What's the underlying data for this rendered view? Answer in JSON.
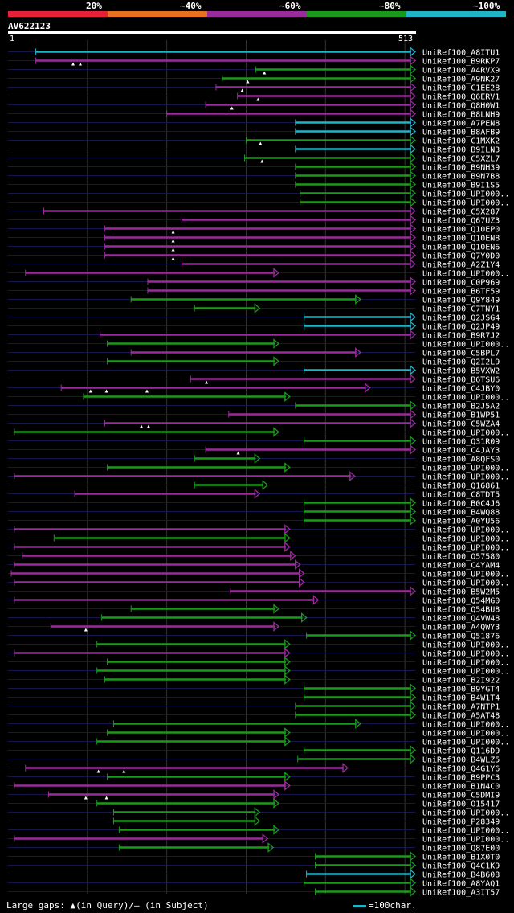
{
  "legend": {
    "segments": [
      {
        "label": "20%",
        "color": "#e8203a"
      },
      {
        "label": "~40%",
        "color": "#e8721f"
      },
      {
        "label": "~60%",
        "color": "#9a2b9c"
      },
      {
        "label": "~80%",
        "color": "#1a9a1a"
      },
      {
        "label": "~100%",
        "color": "#1fb5c6"
      }
    ]
  },
  "query": {
    "name": "AV622123",
    "start": "1",
    "end": "513"
  },
  "colors": {
    "cyan": "#1fb5c6",
    "green": "#1a9a1a",
    "purple": "#9a2b9c",
    "guide": "#16164a",
    "grid": "#333"
  },
  "footer": {
    "gaps": "Large gaps: ▲(in Query)/– (in Subject)",
    "scale": "=100char."
  },
  "chart_data": {
    "type": "alignment",
    "query_length": 513,
    "hits": [
      {
        "label": "UniRef100_A8ITU1",
        "s": 35,
        "e": 513,
        "c": "c"
      },
      {
        "label": "UniRef100_B9RKP7",
        "s": 35,
        "e": 513,
        "c": "p",
        "q": [
          82,
          91
        ]
      },
      {
        "label": "UniRef100_A4RVX9",
        "s": 312,
        "e": 513,
        "c": "g",
        "q": [
          323
        ]
      },
      {
        "label": "UniRef100_A9NK27",
        "s": 270,
        "e": 513,
        "c": "g",
        "q": [
          302
        ]
      },
      {
        "label": "UniRef100_C1EE28",
        "s": 262,
        "e": 513,
        "c": "p",
        "q": [
          295
        ]
      },
      {
        "label": "UniRef100_Q6ERV1",
        "s": 289,
        "e": 513,
        "c": "p",
        "q": [
          315
        ]
      },
      {
        "label": "UniRef100_Q8H0W1",
        "s": 249,
        "e": 513,
        "c": "p",
        "q": [
          282
        ]
      },
      {
        "label": "UniRef100_B8LNH9",
        "s": 200,
        "e": 513,
        "c": "p"
      },
      {
        "label": "UniRef100_A7PEN8",
        "s": 362,
        "e": 513,
        "c": "c"
      },
      {
        "label": "UniRef100_B8AFB9",
        "s": 362,
        "e": 513,
        "c": "c"
      },
      {
        "label": "UniRef100_C1MXK2",
        "s": 300,
        "e": 513,
        "c": "g",
        "q": [
          318
        ]
      },
      {
        "label": "UniRef100_B9ILN3",
        "s": 362,
        "e": 513,
        "c": "c"
      },
      {
        "label": "UniRef100_C5XZL7",
        "s": 298,
        "e": 513,
        "c": "g",
        "q": [
          320
        ]
      },
      {
        "label": "UniRef100_B9NH39",
        "s": 362,
        "e": 513,
        "c": "g"
      },
      {
        "label": "UniRef100_B9N7B8",
        "s": 362,
        "e": 513,
        "c": "g"
      },
      {
        "label": "UniRef100_B9I1S5",
        "s": 362,
        "e": 513,
        "c": "g"
      },
      {
        "label": "UniRef100_UPI000..",
        "s": 368,
        "e": 513,
        "c": "g"
      },
      {
        "label": "UniRef100_UPI000..",
        "s": 368,
        "e": 513,
        "c": "g"
      },
      {
        "label": "UniRef100_C5X287",
        "s": 45,
        "e": 513,
        "c": "p"
      },
      {
        "label": "UniRef100_Q67UZ3",
        "s": 219,
        "e": 513,
        "c": "p"
      },
      {
        "label": "UniRef100_Q10EP0",
        "s": 122,
        "e": 513,
        "c": "p",
        "q": [
          208
        ]
      },
      {
        "label": "UniRef100_Q10EN8",
        "s": 122,
        "e": 513,
        "c": "p",
        "q": [
          208
        ]
      },
      {
        "label": "UniRef100_Q10EN6",
        "s": 122,
        "e": 513,
        "c": "p",
        "q": [
          208
        ]
      },
      {
        "label": "UniRef100_Q7Y0D0",
        "s": 122,
        "e": 513,
        "c": "p",
        "q": [
          208
        ]
      },
      {
        "label": "UniRef100_A2Z1Y4",
        "s": 219,
        "e": 513,
        "c": "p"
      },
      {
        "label": "UniRef100_UPI000..",
        "s": 22,
        "e": 341,
        "c": "p"
      },
      {
        "label": "UniRef100_C0P969",
        "s": 176,
        "e": 513,
        "c": "p"
      },
      {
        "label": "UniRef100_B6TF59",
        "s": 176,
        "e": 513,
        "c": "p"
      },
      {
        "label": "UniRef100_Q9Y849",
        "s": 155,
        "e": 444,
        "c": "g"
      },
      {
        "label": "UniRef100_C7TNY1",
        "s": 235,
        "e": 317,
        "c": "g"
      },
      {
        "label": "UniRef100_Q2JSG4",
        "s": 373,
        "e": 513,
        "c": "c"
      },
      {
        "label": "UniRef100_Q2JP49",
        "s": 373,
        "e": 513,
        "c": "c"
      },
      {
        "label": "UniRef100_B9R7J2",
        "s": 116,
        "e": 513,
        "c": "p"
      },
      {
        "label": "UniRef100_UPI000..",
        "s": 125,
        "e": 341,
        "c": "g"
      },
      {
        "label": "UniRef100_C5BPL7",
        "s": 155,
        "e": 444,
        "c": "p"
      },
      {
        "label": "UniRef100_Q2I2L9",
        "s": 125,
        "e": 341,
        "c": "g"
      },
      {
        "label": "UniRef100_B5VXW2",
        "s": 373,
        "e": 513,
        "c": "c"
      },
      {
        "label": "UniRef100_B6TSU6",
        "s": 230,
        "e": 513,
        "c": "p",
        "q": [
          250
        ]
      },
      {
        "label": "UniRef100_C4JBY0",
        "s": 67,
        "e": 456,
        "c": "p",
        "q": [
          104,
          124,
          175
        ]
      },
      {
        "label": "UniRef100_UPI000..",
        "s": 95,
        "e": 355,
        "c": "g"
      },
      {
        "label": "UniRef100_B2J5A2",
        "s": 362,
        "e": 513,
        "c": "g"
      },
      {
        "label": "UniRef100_B1WP51",
        "s": 278,
        "e": 513,
        "c": "p"
      },
      {
        "label": "UniRef100_C5WZA4",
        "s": 122,
        "e": 513,
        "c": "p",
        "q": [
          168,
          177
        ]
      },
      {
        "label": "UniRef100_UPI000..",
        "s": 8,
        "e": 341,
        "c": "g"
      },
      {
        "label": "UniRef100_Q31R09",
        "s": 373,
        "e": 513,
        "c": "g"
      },
      {
        "label": "UniRef100_C4JAY3",
        "s": 249,
        "e": 513,
        "c": "p",
        "q": [
          290
        ]
      },
      {
        "label": "UniRef100_A8QFS0",
        "s": 235,
        "e": 317,
        "c": "g"
      },
      {
        "label": "UniRef100_UPI000..",
        "s": 125,
        "e": 355,
        "c": "g"
      },
      {
        "label": "UniRef100_UPI000..",
        "s": 8,
        "e": 437,
        "c": "p"
      },
      {
        "label": "UniRef100_Q16861",
        "s": 235,
        "e": 327,
        "c": "g"
      },
      {
        "label": "UniRef100_C8TDT5",
        "s": 84,
        "e": 317,
        "c": "p"
      },
      {
        "label": "UniRef100_B0C4J6",
        "s": 373,
        "e": 513,
        "c": "g"
      },
      {
        "label": "UniRef100_B4WQ88",
        "s": 373,
        "e": 513,
        "c": "g"
      },
      {
        "label": "UniRef100_A0YU56",
        "s": 373,
        "e": 513,
        "c": "g"
      },
      {
        "label": "UniRef100_UPI000..",
        "s": 8,
        "e": 355,
        "c": "p"
      },
      {
        "label": "UniRef100_UPI000..",
        "s": 58,
        "e": 355,
        "c": "g"
      },
      {
        "label": "UniRef100_UPI000..",
        "s": 8,
        "e": 355,
        "c": "p"
      },
      {
        "label": "UniRef100_O57580",
        "s": 18,
        "e": 362,
        "c": "p"
      },
      {
        "label": "UniRef100_C4YAM4",
        "s": 8,
        "e": 368,
        "c": "p"
      },
      {
        "label": "UniRef100_UPI000..",
        "s": 4,
        "e": 373,
        "c": "p"
      },
      {
        "label": "UniRef100_UPI000..",
        "s": 8,
        "e": 373,
        "c": "p"
      },
      {
        "label": "UniRef100_B5W2M5",
        "s": 280,
        "e": 513,
        "c": "p"
      },
      {
        "label": "UniRef100_Q54MG0",
        "s": 8,
        "e": 391,
        "c": "p"
      },
      {
        "label": "UniRef100_Q54BU8",
        "s": 155,
        "e": 341,
        "c": "g"
      },
      {
        "label": "UniRef100_Q4VW48",
        "s": 118,
        "e": 376,
        "c": "g"
      },
      {
        "label": "UniRef100_A4QWY3",
        "s": 54,
        "e": 341,
        "c": "p",
        "q": [
          98
        ]
      },
      {
        "label": "UniRef100_Q51876",
        "s": 376,
        "e": 513,
        "c": "g"
      },
      {
        "label": "UniRef100_UPI000..",
        "s": 112,
        "e": 355,
        "c": "g"
      },
      {
        "label": "UniRef100_UPI000..",
        "s": 8,
        "e": 355,
        "c": "p"
      },
      {
        "label": "UniRef100_UPI000..",
        "s": 125,
        "e": 355,
        "c": "g"
      },
      {
        "label": "UniRef100_UPI000..",
        "s": 112,
        "e": 355,
        "c": "g"
      },
      {
        "label": "UniRef100_B2I922",
        "s": 122,
        "e": 355,
        "c": "g"
      },
      {
        "label": "UniRef100_B9YGT4",
        "s": 373,
        "e": 513,
        "c": "g"
      },
      {
        "label": "UniRef100_B4W1T4",
        "s": 373,
        "e": 513,
        "c": "g"
      },
      {
        "label": "UniRef100_A7NTP1",
        "s": 362,
        "e": 513,
        "c": "g"
      },
      {
        "label": "UniRef100_A5AT48",
        "s": 362,
        "e": 513,
        "c": "g"
      },
      {
        "label": "UniRef100_UPI000..",
        "s": 133,
        "e": 444,
        "c": "g"
      },
      {
        "label": "UniRef100_UPI000..",
        "s": 125,
        "e": 355,
        "c": "g"
      },
      {
        "label": "UniRef100_UPI000..",
        "s": 112,
        "e": 355,
        "c": "g"
      },
      {
        "label": "UniRef100_Q116D9",
        "s": 373,
        "e": 513,
        "c": "g"
      },
      {
        "label": "UniRef100_B4WLZ5",
        "s": 365,
        "e": 513,
        "c": "g"
      },
      {
        "label": "UniRef100_Q4G1Y6",
        "s": 22,
        "e": 428,
        "c": "p",
        "q": [
          114,
          146
        ]
      },
      {
        "label": "UniRef100_B9PPC3",
        "s": 125,
        "e": 355,
        "c": "g"
      },
      {
        "label": "UniRef100_B1N4C0",
        "s": 8,
        "e": 355,
        "c": "p"
      },
      {
        "label": "UniRef100_C5DMI9",
        "s": 51,
        "e": 341,
        "c": "p",
        "q": [
          98,
          124
        ]
      },
      {
        "label": "UniRef100_O15417",
        "s": 112,
        "e": 341,
        "c": "g"
      },
      {
        "label": "UniRef100_UPI000..",
        "s": 133,
        "e": 317,
        "c": "g"
      },
      {
        "label": "UniRef100_P28349",
        "s": 133,
        "e": 317,
        "c": "g"
      },
      {
        "label": "UniRef100_UPI000..",
        "s": 140,
        "e": 341,
        "c": "g"
      },
      {
        "label": "UniRef100_UPI000..",
        "s": 8,
        "e": 327,
        "c": "p"
      },
      {
        "label": "UniRef100_Q87E00",
        "s": 140,
        "e": 334,
        "c": "g"
      },
      {
        "label": "UniRef100_B1X0T0",
        "s": 387,
        "e": 513,
        "c": "g"
      },
      {
        "label": "UniRef100_Q4C1K9",
        "s": 387,
        "e": 513,
        "c": "g"
      },
      {
        "label": "UniRef100_B4B608",
        "s": 376,
        "e": 513,
        "c": "c"
      },
      {
        "label": "UniRef100_A8YAQ1",
        "s": 373,
        "e": 513,
        "c": "g"
      },
      {
        "label": "UniRef100_A3IT57",
        "s": 387,
        "e": 513,
        "c": "g"
      }
    ]
  }
}
